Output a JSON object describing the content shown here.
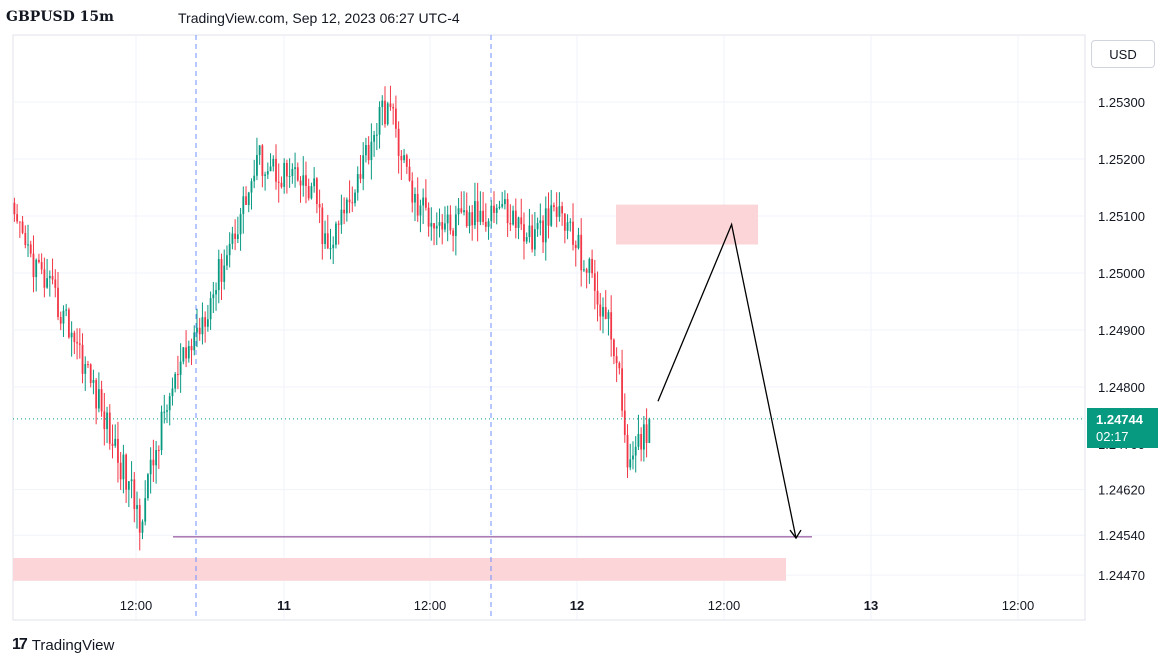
{
  "header": {
    "symbol": "GBPUSD 15m",
    "source": "TradingView.com, Sep 12, 2023 06:27 UTC-4"
  },
  "currency_button": "USD",
  "price_badge": {
    "price": "1.24744",
    "countdown": "02:17"
  },
  "footer": {
    "logo_mark": "17",
    "logo_text": "TradingView"
  },
  "colors": {
    "up": "#089981",
    "down": "#f23645",
    "zone": "#fbd5d7",
    "level_line": "#7b2f8a",
    "dashed": "#6f8fff",
    "current_price": "#089981"
  },
  "chart_data": {
    "type": "candlestick",
    "y_axis": {
      "ticks": [
        1.253,
        1.252,
        1.251,
        1.25,
        1.249,
        1.248,
        1.2462,
        1.2454,
        1.2447
      ],
      "tick_labels": [
        "1.25300",
        "1.25200",
        "1.25100",
        "1.25000",
        "1.24900",
        "1.24800",
        "1.24620",
        "1.24540",
        "1.24470"
      ],
      "overlapped_label": "1.24700"
    },
    "x_axis": {
      "ticks": [
        {
          "label": "12:00",
          "bold": false
        },
        {
          "label": "11",
          "bold": true
        },
        {
          "label": "12:00",
          "bold": false
        },
        {
          "label": "12",
          "bold": true
        },
        {
          "label": "12:00",
          "bold": false
        },
        {
          "label": "13",
          "bold": true
        },
        {
          "label": "12:00",
          "bold": false
        }
      ]
    },
    "current_price": 1.24744,
    "support_level": 1.24537,
    "zones": [
      {
        "from": 1.2446,
        "to": 1.245
      },
      {
        "from": 1.2505,
        "to": 1.2512
      }
    ],
    "projection": [
      {
        "bar": 0,
        "price": 1.24775
      },
      {
        "bar": 8,
        "price": 1.25085
      },
      {
        "bar": 15,
        "price": 1.24535
      }
    ],
    "anchors": [
      {
        "bar": 0,
        "price": 1.2508
      },
      {
        "bar": 22,
        "price": 1.2489
      },
      {
        "bar": 38,
        "price": 1.2468
      },
      {
        "bar": 46,
        "price": 1.2457
      },
      {
        "bar": 56,
        "price": 1.2477
      },
      {
        "bar": 73,
        "price": 1.2497
      },
      {
        "bar": 90,
        "price": 1.252
      },
      {
        "bar": 110,
        "price": 1.2514
      },
      {
        "bar": 115,
        "price": 1.2503
      },
      {
        "bar": 132,
        "price": 1.2525
      },
      {
        "bar": 137,
        "price": 1.253
      },
      {
        "bar": 147,
        "price": 1.2512
      },
      {
        "bar": 160,
        "price": 1.2508
      },
      {
        "bar": 178,
        "price": 1.2512
      },
      {
        "bar": 190,
        "price": 1.2506
      },
      {
        "bar": 200,
        "price": 1.2511
      },
      {
        "bar": 211,
        "price": 1.25
      },
      {
        "bar": 220,
        "price": 1.2488
      },
      {
        "bar": 226,
        "price": 1.2465
      },
      {
        "bar": 233,
        "price": 1.24744
      }
    ]
  }
}
